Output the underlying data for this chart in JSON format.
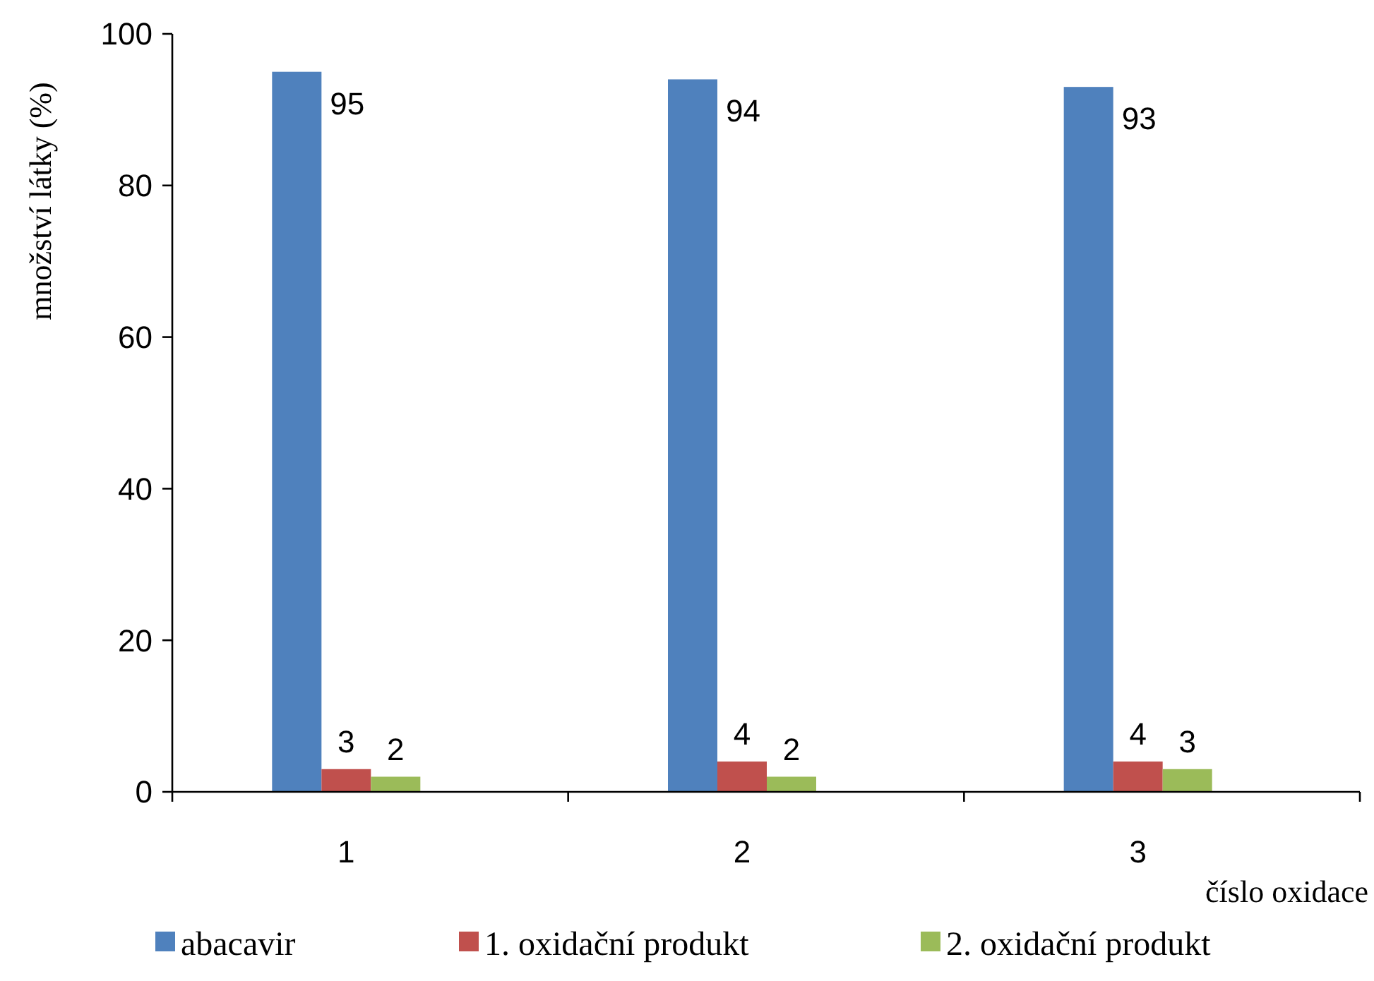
{
  "chart_data": {
    "type": "bar",
    "xlabel": "číslo oxidace",
    "ylabel": "množství látky (%)",
    "categories": [
      "1",
      "2",
      "3"
    ],
    "series": [
      {
        "name": "abacavir",
        "color": "#4f81bd",
        "values": [
          95,
          94,
          93
        ]
      },
      {
        "name": "1. oxidační produkt",
        "color": "#c0504d",
        "values": [
          3,
          4,
          4
        ]
      },
      {
        "name": "2. oxidační produkt",
        "color": "#9bbb59",
        "values": [
          2,
          2,
          3
        ]
      }
    ],
    "ylim": [
      0,
      100
    ],
    "yticks": [
      0,
      20,
      40,
      60,
      80,
      100
    ],
    "data_labels": true,
    "legend": "bottom",
    "grid": false
  }
}
